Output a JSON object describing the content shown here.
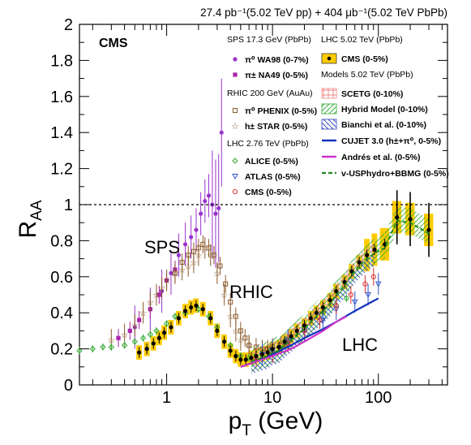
{
  "header": {
    "lumi_text": "27.4 pb⁻¹(5.02 TeV pp) + 404 μb⁻¹(5.02 TeV PbPb)",
    "experiment": "CMS"
  },
  "region_labels": {
    "sps": "SPS",
    "rhic": "RHIC",
    "lhc": "LHC"
  },
  "legend": {
    "sps_header": "SPS 17.3 GeV (PbPb)",
    "sps_items": [
      "π⁰ WA98 (0-7%)",
      "π± NA49 (0-5%)"
    ],
    "rhic_header": "RHIC 200 GeV (AuAu)",
    "rhic_items": [
      "π⁰ PHENIX (0-5%)",
      "h± STAR (0-5%)"
    ],
    "lhc276_header": "LHC 2.76 TeV (PbPb)",
    "lhc276_items": [
      "ALICE (0-5%)",
      "ATLAS (0-5%)",
      "CMS (0-5%)"
    ],
    "lhc502_header": "LHC 5.02 TeV (PbPb)",
    "lhc502_items": [
      "CMS (0-5%)"
    ],
    "models_header": "Models 5.02 TeV (PbPb)",
    "model_items": [
      "SCETG (0-10%)",
      "Hybrid Model (0-10%)",
      "Bianchi et al. (0-10%)",
      "CUJET 3.0 (h±+π⁰, 0-5%)",
      "Andrés et al. (0-5%)",
      "v-USPhydro+BBMG (0-5%)"
    ]
  },
  "colors": {
    "wa98": "#9933cc",
    "na49": "#aa22aa",
    "phenix": "#8b5a2b",
    "star": "#8b5a2b",
    "alice": "#33aa33",
    "atlas": "#3355cc",
    "cms276": "#dd3333",
    "cms502_band": "#ffcc00",
    "scet": "#ee8888",
    "hybrid": "#33aa33",
    "bianchi": "#3344bb",
    "cujet": "#1133bb",
    "andres": "#cc33cc",
    "vusp": "#228822"
  },
  "chart_data": {
    "type": "scatter",
    "xlabel": "p_T (GeV)",
    "ylabel": "R_AA",
    "xscale": "log",
    "xlim": [
      0.15,
      450
    ],
    "ylim": [
      0,
      2
    ],
    "xticks": [
      "1",
      "10",
      "100"
    ],
    "yticks": [
      "0",
      "0.2",
      "0.4",
      "0.6",
      "0.8",
      "1",
      "1.2",
      "1.4",
      "1.6",
      "1.8",
      "2"
    ],
    "reference_line": 1,
    "series": [
      {
        "name": "π⁰ WA98 (0-7%)",
        "x": [
          0.5,
          0.7,
          0.9,
          1.1,
          1.3,
          1.5,
          1.7,
          1.9,
          2.1,
          2.3,
          2.5,
          2.7,
          2.9,
          3.1,
          3.3
        ],
        "y": [
          0.32,
          0.42,
          0.52,
          0.62,
          0.72,
          0.78,
          0.82,
          0.86,
          0.95,
          1.02,
          1.05,
          1.0,
          0.95,
          0.98,
          1.4
        ]
      },
      {
        "name": "π± NA49 (0-5%)",
        "x": [
          0.35,
          0.45,
          0.55,
          0.7,
          0.85,
          1.0,
          1.2
        ],
        "y": [
          0.26,
          0.3,
          0.36,
          0.42,
          0.5,
          0.58,
          0.64
        ]
      },
      {
        "name": "π⁰ PHENIX (0-5%)",
        "x": [
          1.2,
          1.4,
          1.6,
          1.8,
          2.0,
          2.2,
          2.5,
          2.8,
          3.2,
          3.6,
          4.0,
          4.5,
          5.0,
          5.5,
          6.0,
          7.0,
          8.0,
          9.0,
          10,
          12,
          14
        ],
        "y": [
          0.62,
          0.68,
          0.72,
          0.74,
          0.76,
          0.78,
          0.76,
          0.72,
          0.66,
          0.56,
          0.46,
          0.38,
          0.3,
          0.26,
          0.22,
          0.21,
          0.2,
          0.2,
          0.21,
          0.22,
          0.24
        ]
      },
      {
        "name": "h± STAR (0-5%)",
        "x": [
          0.3,
          0.4,
          0.5,
          0.6,
          0.7,
          0.8,
          0.9,
          1.0,
          1.2,
          1.4,
          1.6,
          1.8,
          2.0,
          2.3,
          2.6,
          3.0,
          3.5,
          4.0,
          4.5,
          5.0,
          6.0
        ],
        "y": [
          0.25,
          0.28,
          0.33,
          0.4,
          0.46,
          0.5,
          0.54,
          0.58,
          0.62,
          0.64,
          0.66,
          0.68,
          0.72,
          0.76,
          0.72,
          0.62,
          0.5,
          0.38,
          0.3,
          0.25,
          0.22
        ]
      },
      {
        "name": "ALICE (0-5%)",
        "x": [
          0.15,
          0.2,
          0.25,
          0.3,
          0.4,
          0.5,
          0.6,
          0.7,
          0.8,
          1.0,
          1.2,
          1.5,
          2.0,
          2.5,
          3.0,
          4.0,
          5.0,
          6.0,
          8.0,
          10,
          14,
          20,
          30,
          40,
          50
        ],
        "y": [
          0.19,
          0.2,
          0.21,
          0.21,
          0.22,
          0.24,
          0.26,
          0.28,
          0.3,
          0.34,
          0.38,
          0.4,
          0.42,
          0.38,
          0.32,
          0.22,
          0.16,
          0.15,
          0.16,
          0.19,
          0.25,
          0.32,
          0.4,
          0.44,
          0.48
        ]
      },
      {
        "name": "ATLAS (0-5%)",
        "x": [
          8,
          10,
          14,
          20,
          30,
          40,
          60,
          80,
          100
        ],
        "y": [
          0.17,
          0.19,
          0.25,
          0.3,
          0.36,
          0.42,
          0.46,
          0.5,
          0.56
        ]
      },
      {
        "name": "CMS (0-5%) 2.76 TeV",
        "x": [
          7,
          10,
          14,
          20,
          28,
          40,
          55,
          75,
          90
        ],
        "y": [
          0.15,
          0.17,
          0.23,
          0.3,
          0.36,
          0.44,
          0.5,
          0.56,
          0.6
        ]
      },
      {
        "name": "CMS (0-5%) 5.02 TeV",
        "x": [
          0.55,
          0.65,
          0.75,
          0.85,
          0.95,
          1.1,
          1.3,
          1.5,
          1.7,
          1.9,
          2.2,
          2.6,
          3.0,
          3.5,
          4.0,
          4.5,
          5.0,
          5.6,
          6.3,
          7.0,
          8.0,
          9.0,
          10,
          11.5,
          13,
          15,
          17,
          20,
          23,
          26,
          30,
          35,
          40,
          48,
          56,
          66,
          78,
          92,
          115,
          150,
          200,
          300
        ],
        "y": [
          0.18,
          0.2,
          0.23,
          0.26,
          0.29,
          0.32,
          0.37,
          0.41,
          0.43,
          0.44,
          0.42,
          0.37,
          0.3,
          0.24,
          0.19,
          0.16,
          0.14,
          0.14,
          0.15,
          0.16,
          0.17,
          0.18,
          0.2,
          0.21,
          0.24,
          0.27,
          0.3,
          0.33,
          0.37,
          0.4,
          0.43,
          0.47,
          0.52,
          0.57,
          0.63,
          0.68,
          0.72,
          0.75,
          0.78,
          0.93,
          0.92,
          0.86
        ]
      }
    ],
    "models": [
      {
        "name": "CUJET 3.0 (h±+π⁰, 0-5%)",
        "x": [
          5,
          7,
          10,
          15,
          20,
          30,
          40,
          60,
          80,
          100
        ],
        "y": [
          0.1,
          0.13,
          0.17,
          0.22,
          0.26,
          0.31,
          0.35,
          0.41,
          0.45,
          0.48
        ]
      },
      {
        "name": "Andrés et al. (0-5%)",
        "x": [
          5,
          7,
          10,
          15,
          20,
          30,
          40,
          50
        ],
        "y": [
          0.1,
          0.13,
          0.16,
          0.2,
          0.24,
          0.3,
          0.35,
          0.38
        ]
      }
    ]
  }
}
